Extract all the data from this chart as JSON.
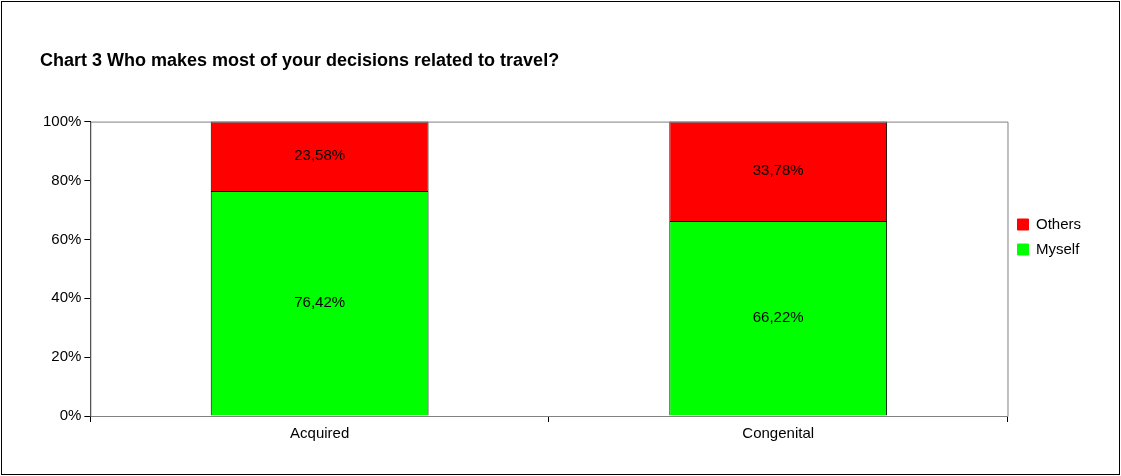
{
  "chart_data": {
    "type": "bar",
    "title": "Chart 3 Who makes most of your decisions related to travel?",
    "categories": [
      "Acquired",
      "Congenital"
    ],
    "stacked": true,
    "legend": "right",
    "grid": false,
    "series": [
      {
        "name": "Myself",
        "color": "#00ff00",
        "values": [
          76.42,
          66.22
        ],
        "value_labels": [
          "76,42%",
          "66,22%"
        ]
      },
      {
        "name": "Others",
        "color": "#ff0000",
        "values": [
          23.58,
          33.78
        ],
        "value_labels": [
          "23,58%",
          "33,78%"
        ]
      }
    ],
    "ylim": [
      0,
      100
    ],
    "yticks": [
      {
        "value": 0,
        "label": "0%"
      },
      {
        "value": 20,
        "label": "20%"
      },
      {
        "value": 40,
        "label": "40%"
      },
      {
        "value": 60,
        "label": "60%"
      },
      {
        "value": 80,
        "label": "80%"
      },
      {
        "value": 100,
        "label": "100%"
      }
    ]
  }
}
